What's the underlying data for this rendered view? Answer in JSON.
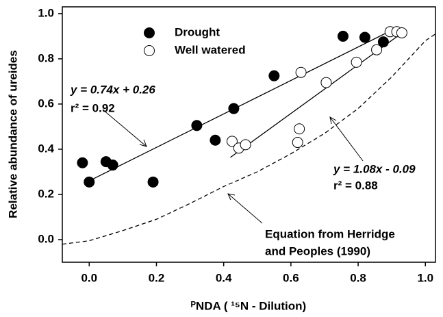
{
  "chart_data": {
    "type": "scatter",
    "xlabel": "ᴾNDA ( ¹⁵N - Dilution)",
    "ylabel": "Relative abundance of ureides",
    "xlim": [
      -0.08,
      1.03
    ],
    "ylim": [
      -0.1,
      1.03
    ],
    "xticks": [
      {
        "value": 0,
        "label": "0.0"
      },
      0.2,
      0.4,
      0.6,
      0.8,
      {
        "value": 1,
        "label": "1.0"
      }
    ],
    "yticks": [
      {
        "value": 0,
        "label": "0.0"
      },
      0.2,
      0.4,
      0.6,
      0.8,
      {
        "value": 1,
        "label": "1.0"
      }
    ],
    "grid": false,
    "series": [
      {
        "name": "Drought",
        "color": "#000000",
        "marker": "filled",
        "x": [
          -0.02,
          0.0,
          0.05,
          0.07,
          0.19,
          0.32,
          0.375,
          0.43,
          0.55,
          0.755,
          0.82,
          0.875
        ],
        "values": [
          0.34,
          0.255,
          0.345,
          0.33,
          0.255,
          0.505,
          0.44,
          0.58,
          0.725,
          0.9,
          0.895,
          0.875
        ]
      },
      {
        "name": "Well watered",
        "color": "#000000",
        "marker": "open",
        "x": [
          0.425,
          0.445,
          0.465,
          0.62,
          0.625,
          0.63,
          0.705,
          0.795,
          0.855,
          0.895,
          0.915,
          0.93
        ],
        "values": [
          0.435,
          0.405,
          0.42,
          0.43,
          0.49,
          0.74,
          0.695,
          0.785,
          0.84,
          0.92,
          0.92,
          0.915
        ]
      }
    ],
    "lines": [
      {
        "x": [
          0.0,
          0.89
        ],
        "values": [
          0.26,
          0.919
        ],
        "dash": false
      },
      {
        "x": [
          0.42,
          0.93
        ],
        "values": [
          0.364,
          0.914
        ],
        "dash": false
      },
      {
        "x": [
          -0.08,
          0.0,
          0.1,
          0.2,
          0.3,
          0.4,
          0.5,
          0.6,
          0.7,
          0.8,
          0.9,
          1.0,
          1.03
        ],
        "values": [
          -0.02,
          -0.005,
          0.04,
          0.09,
          0.16,
          0.235,
          0.3,
          0.38,
          0.47,
          0.58,
          0.72,
          0.88,
          0.91
        ],
        "dash": true
      }
    ],
    "annotations": [
      "y = 0.74x + 0.26",
      "r² = 0.92",
      "y = 1.08x - 0.09",
      "r² = 0.88",
      "Equation from Herridge",
      "and Peoples (1990)"
    ]
  }
}
